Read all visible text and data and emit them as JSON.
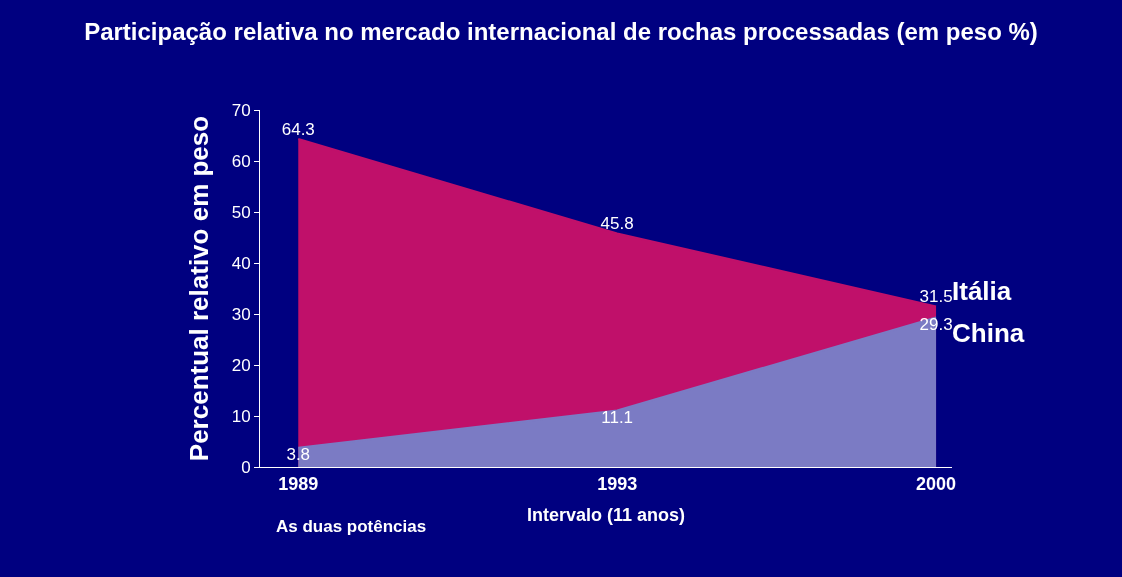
{
  "chart_data": {
    "type": "area",
    "title": "Participação relativa no mercado internacional de rochas processadas (em peso %)",
    "ylabel": "Percentual relativo em peso",
    "xlabel": "Intervalo (11 anos)",
    "annotations": [
      "As duas potências"
    ],
    "categories": [
      "1989",
      "1993",
      "2000"
    ],
    "series": [
      {
        "name": "Itália",
        "color": "#c0106a",
        "values": [
          64.3,
          45.8,
          31.5
        ]
      },
      {
        "name": "China",
        "color": "#7b7bc4",
        "values": [
          3.8,
          11.1,
          29.3
        ]
      }
    ],
    "ylim": [
      0,
      70
    ],
    "yticks": [
      0,
      10,
      20,
      30,
      40,
      50,
      60,
      70
    ],
    "data_labels": true,
    "grid": false,
    "marker": "none"
  }
}
